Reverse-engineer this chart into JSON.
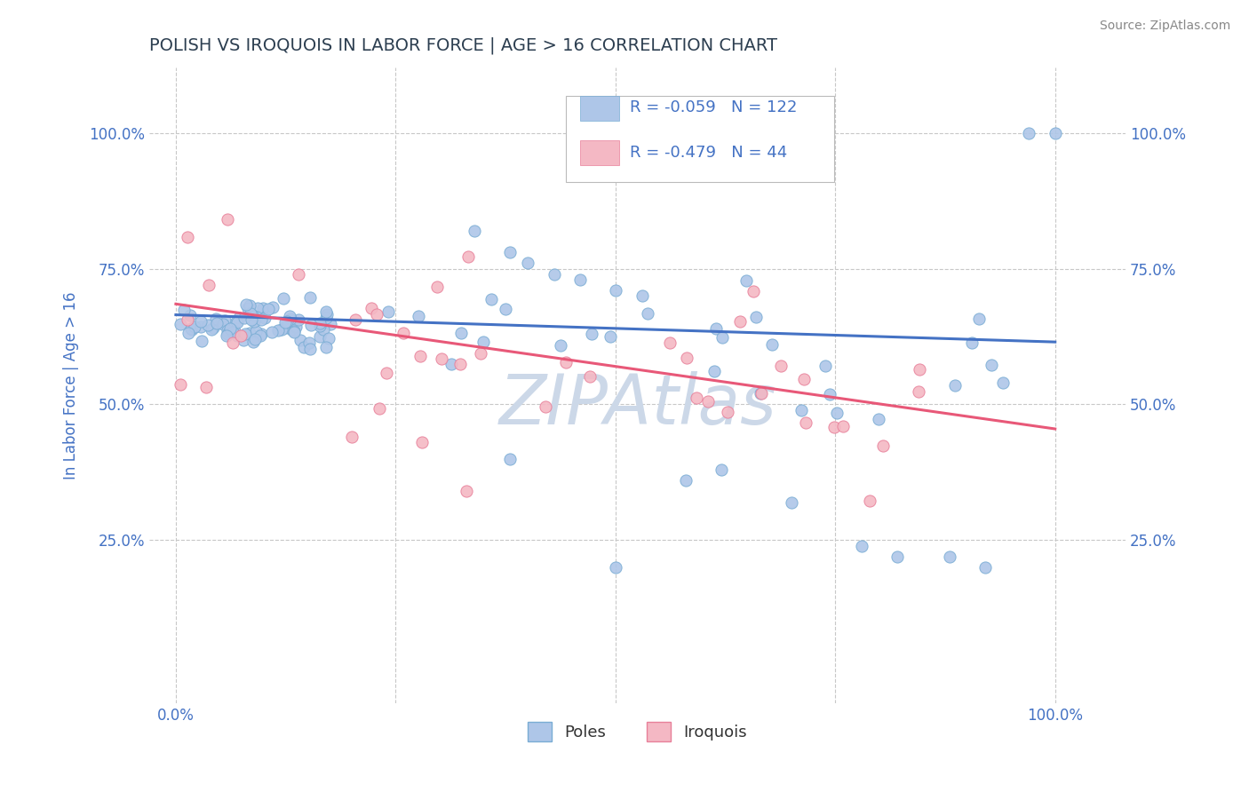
{
  "title": "POLISH VS IROQUOIS IN LABOR FORCE | AGE > 16 CORRELATION CHART",
  "source_text": "Source: ZipAtlas.com",
  "ylabel": "In Labor Force | Age > 16",
  "x_tick_labels_left": "0.0%",
  "x_tick_labels_right": "100.0%",
  "y_tick_labels": [
    "25.0%",
    "50.0%",
    "75.0%",
    "100.0%"
  ],
  "y_tick_vals": [
    0.25,
    0.5,
    0.75,
    1.0
  ],
  "xlim": [
    -0.03,
    1.08
  ],
  "ylim": [
    -0.05,
    1.12
  ],
  "poles_color": "#aec6e8",
  "poles_edge_color": "#7aadd4",
  "iroquois_color": "#f4b8c4",
  "iroquois_edge_color": "#e8809a",
  "poles_line_color": "#4472c4",
  "iroquois_line_color": "#e85878",
  "poles_R": -0.059,
  "poles_N": 122,
  "iroquois_R": -0.479,
  "iroquois_N": 44,
  "legend_color": "#4472c4",
  "watermark_color": "#ccd8e8",
  "grid_color": "#c8c8c8",
  "background_color": "#ffffff",
  "title_color": "#2c3e50",
  "axis_label_color": "#4472c4",
  "tick_label_color": "#4472c4",
  "source_color": "#888888",
  "poles_line_start_y": 0.665,
  "poles_line_end_y": 0.615,
  "iroquois_line_start_y": 0.685,
  "iroquois_line_end_y": 0.455
}
